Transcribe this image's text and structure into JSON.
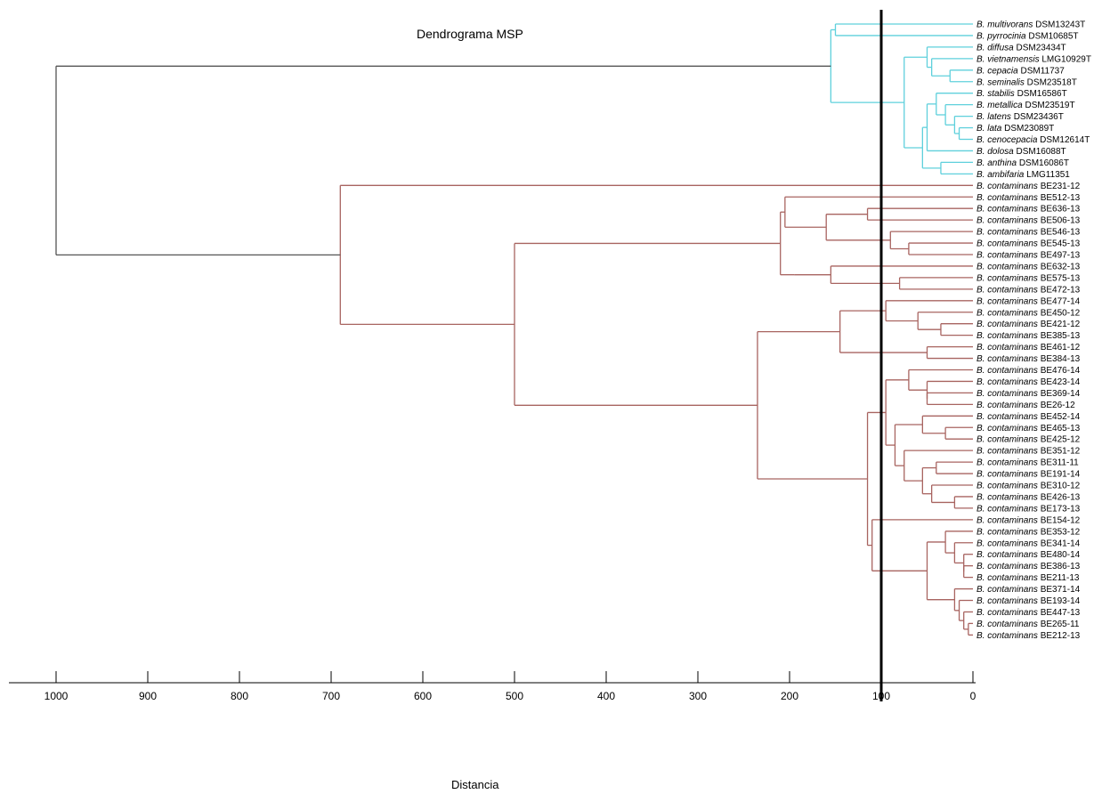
{
  "title": "Dendrograma MSP",
  "x_axis": {
    "label": "Distancia",
    "ticks": [
      "1000",
      "900",
      "800",
      "700",
      "600",
      "500",
      "400",
      "300",
      "200",
      "100",
      "0"
    ]
  },
  "cutoff_distance": 100,
  "colors": {
    "reference_cluster": "#5fd0dc",
    "contaminans_cluster": "#a86460",
    "root": "#555555",
    "cutoff": "#000000"
  },
  "leaves": [
    {
      "sp": "B. multivorans",
      "strain": "DSM13243T"
    },
    {
      "sp": "B. pyrrocinia",
      "strain": "DSM10685T"
    },
    {
      "sp": "B. diffusa",
      "strain": "DSM23434T"
    },
    {
      "sp": "B. vietnamensis",
      "strain": "LMG10929T"
    },
    {
      "sp": "B. cepacia",
      "strain": "DSM11737"
    },
    {
      "sp": "B. seminalis",
      "strain": "DSM23518T"
    },
    {
      "sp": "B. stabilis",
      "strain": "DSM16586T"
    },
    {
      "sp": "B. metallica",
      "strain": "DSM23519T"
    },
    {
      "sp": "B. latens",
      "strain": "DSM23436T"
    },
    {
      "sp": "B. lata",
      "strain": "DSM23089T"
    },
    {
      "sp": "B. cenocepacia",
      "strain": "DSM12614T"
    },
    {
      "sp": "B. dolosa",
      "strain": "DSM16088T"
    },
    {
      "sp": "B. anthina",
      "strain": "DSM16086T"
    },
    {
      "sp": "B. ambifaria",
      "strain": "LMG11351"
    },
    {
      "sp": "B. contaminans",
      "strain": "BE231-12"
    },
    {
      "sp": "B. contaminans",
      "strain": "BE512-13"
    },
    {
      "sp": "B. contaminans",
      "strain": "BE636-13"
    },
    {
      "sp": "B. contaminans",
      "strain": "BE506-13"
    },
    {
      "sp": "B. contaminans",
      "strain": "BE546-13"
    },
    {
      "sp": "B. contaminans",
      "strain": "BE545-13"
    },
    {
      "sp": "B. contaminans",
      "strain": "BE497-13"
    },
    {
      "sp": "B. contaminans",
      "strain": "BE632-13"
    },
    {
      "sp": "B. contaminans",
      "strain": "BE575-13"
    },
    {
      "sp": "B. contaminans",
      "strain": "BE472-13"
    },
    {
      "sp": "B. contaminans",
      "strain": "BE477-14"
    },
    {
      "sp": "B. contaminans",
      "strain": "BE450-12"
    },
    {
      "sp": "B. contaminans",
      "strain": "BE421-12"
    },
    {
      "sp": "B. contaminans",
      "strain": "BE385-13"
    },
    {
      "sp": "B. contaminans",
      "strain": "BE461-12"
    },
    {
      "sp": "B. contaminans",
      "strain": "BE384-13"
    },
    {
      "sp": "B. contaminans",
      "strain": "BE476-14"
    },
    {
      "sp": "B. contaminans",
      "strain": "BE423-14"
    },
    {
      "sp": "B. contaminans",
      "strain": "BE369-14"
    },
    {
      "sp": "B. contaminans",
      "strain": "BE26-12"
    },
    {
      "sp": "B. contaminans",
      "strain": "BE452-14"
    },
    {
      "sp": "B. contaminans",
      "strain": "BE465-13"
    },
    {
      "sp": "B. contaminans",
      "strain": "BE425-12"
    },
    {
      "sp": "B. contaminans",
      "strain": "BE351-12"
    },
    {
      "sp": "B. contaminans",
      "strain": "BE311-11"
    },
    {
      "sp": "B. contaminans",
      "strain": "BE191-14"
    },
    {
      "sp": "B. contaminans",
      "strain": "BE310-12"
    },
    {
      "sp": "B. contaminans",
      "strain": "BE426-13"
    },
    {
      "sp": "B. contaminans",
      "strain": "BE173-13"
    },
    {
      "sp": "B. contaminans",
      "strain": "BE154-12"
    },
    {
      "sp": "B. contaminans",
      "strain": "BE353-12"
    },
    {
      "sp": "B. contaminans",
      "strain": "BE341-14"
    },
    {
      "sp": "B. contaminans",
      "strain": "BE480-14"
    },
    {
      "sp": "B. contaminans",
      "strain": "BE386-13"
    },
    {
      "sp": "B. contaminans",
      "strain": "BE211-13"
    },
    {
      "sp": "B. contaminans",
      "strain": "BE371-14"
    },
    {
      "sp": "B. contaminans",
      "strain": "BE193-14"
    },
    {
      "sp": "B. contaminans",
      "strain": "BE447-13"
    },
    {
      "sp": "B. contaminans",
      "strain": "BE265-11"
    },
    {
      "sp": "B. contaminans",
      "strain": "BE212-13"
    }
  ],
  "tree": {
    "h": 1000,
    "c": "root",
    "k": [
      {
        "h": 155,
        "c": "ref",
        "k": [
          {
            "h": 150,
            "k": [
              0,
              1
            ]
          },
          {
            "h": 75,
            "k": [
              {
                "h": 50,
                "k": [
                  2,
                  {
                    "h": 45,
                    "k": [
                      3,
                      {
                        "h": 25,
                        "k": [
                          4,
                          5
                        ]
                      }
                    ]
                  }
                ]
              },
              {
                "h": 55,
                "k": [
                  {
                    "h": 50,
                    "k": [
                      {
                        "h": 40,
                        "k": [
                          6,
                          {
                            "h": 30,
                            "k": [
                              7,
                              {
                                "h": 20,
                                "k": [
                                  8,
                                  {
                                    "h": 15,
                                    "k": [
                                      9,
                                      10
                                    ]
                                  }
                                ]
                              }
                            ]
                          }
                        ]
                      },
                      11
                    ]
                  },
                  {
                    "h": 35,
                    "k": [
                      12,
                      13
                    ]
                  }
                ]
              }
            ]
          }
        ]
      },
      {
        "h": 690,
        "c": "bc",
        "k": [
          14,
          {
            "h": 500,
            "k": [
              {
                "h": 210,
                "k": [
                  {
                    "h": 205,
                    "k": [
                      15,
                      {
                        "h": 160,
                        "k": [
                          {
                            "h": 115,
                            "k": [
                              16,
                              17
                            ]
                          },
                          {
                            "h": 90,
                            "k": [
                              18,
                              {
                                "h": 70,
                                "k": [
                                  19,
                                  20
                                ]
                              }
                            ]
                          }
                        ]
                      }
                    ]
                  },
                  {
                    "h": 195,
                    "k": [
                      {
                        "h": 155,
                        "k": [
                          21,
                          {
                            "h": 80,
                            "k": [
                              22,
                              23
                            ]
                          }
                        ]
                      }
                    ]
                  }
                ]
              },
              {
                "h": 235,
                "k": [
                  {
                    "h": 145,
                    "k": [
                      {
                        "h": 95,
                        "k": [
                          24,
                          {
                            "h": 60,
                            "k": [
                              25,
                              {
                                "h": 35,
                                "k": [
                                  26,
                                  27
                                ]
                              }
                            ]
                          }
                        ]
                      },
                      {
                        "h": 50,
                        "k": [
                          28,
                          29
                        ]
                      }
                    ]
                  },
                  {
                    "h": 115,
                    "k": [
                      {
                        "h": 115,
                        "k": [
                          {
                            "h": 95,
                            "k": [
                              {
                                "h": 70,
                                "k": [
                                  30,
                                  {
                                    "h": 50,
                                    "k": [
                                      31,
                                      {
                                        "h": 50,
                                        "k": [
                                          32,
                                          33
                                        ]
                                      }
                                    ]
                                  }
                                ]
                              },
                              {
                                "h": 85,
                                "k": [
                                  {
                                    "h": 55,
                                    "k": [
                                      34,
                                      {
                                        "h": 30,
                                        "k": [
                                          35,
                                          36
                                        ]
                                      }
                                    ]
                                  },
                                  {
                                    "h": 75,
                                    "k": [
                                      37,
                                      {
                                        "h": 55,
                                        "k": [
                                          {
                                            "h": 40,
                                            "k": [
                                              38,
                                              39
                                            ]
                                          },
                                          {
                                            "h": 45,
                                            "k": [
                                              40,
                                              {
                                                "h": 20,
                                                "k": [
                                                  41,
                                                  42
                                                ]
                                              }
                                            ]
                                          }
                                        ]
                                      }
                                    ]
                                  }
                                ]
                              }
                            ]
                          }
                        ]
                      },
                      {
                        "h": 110,
                        "k": [
                          43,
                          {
                            "h": 50,
                            "k": [
                              {
                                "h": 30,
                                "k": [
                                  44,
                                  {
                                    "h": 20,
                                    "k": [
                                      45,
                                      {
                                        "h": 10,
                                        "k": [
                                          46,
                                          {
                                            "h": 10,
                                            "k": [
                                              47,
                                              48
                                            ]
                                          }
                                        ]
                                      }
                                    ]
                                  }
                                ]
                              },
                              {
                                "h": 20,
                                "k": [
                                  49,
                                  {
                                    "h": 15,
                                    "k": [
                                      50,
                                      {
                                        "h": 10,
                                        "k": [
                                          51,
                                          {
                                            "h": 5,
                                            "k": [
                                              52,
                                              53
                                            ]
                                          }
                                        ]
                                      }
                                    ]
                                  }
                                ]
                              }
                            ]
                          }
                        ]
                      }
                    ]
                  }
                ]
              }
            ]
          }
        ]
      }
    ]
  }
}
